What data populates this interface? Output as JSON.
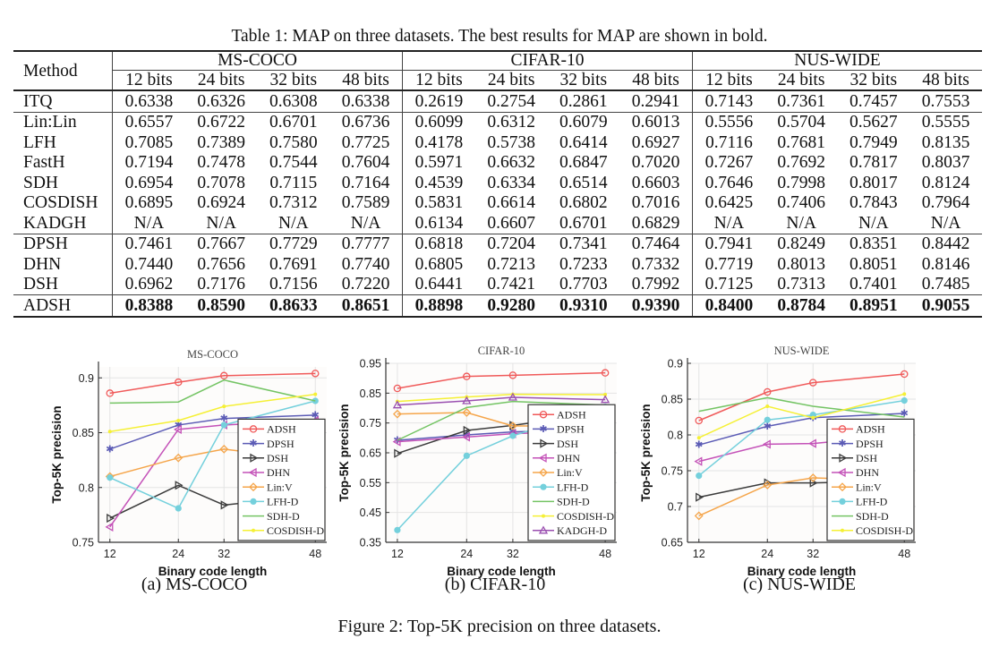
{
  "table": {
    "caption": "Table 1: MAP on three datasets. The best results for MAP are shown in bold.",
    "method_header": "Method",
    "datasets": [
      "MS-COCO",
      "CIFAR-10",
      "NUS-WIDE"
    ],
    "bits": [
      "12 bits",
      "24 bits",
      "32 bits",
      "48 bits"
    ],
    "rows": [
      {
        "method": "ITQ",
        "values": [
          "0.6338",
          "0.6326",
          "0.6308",
          "0.6338",
          "0.2619",
          "0.2754",
          "0.2861",
          "0.2941",
          "0.7143",
          "0.7361",
          "0.7457",
          "0.7553"
        ]
      },
      {
        "method": "Lin:Lin",
        "values": [
          "0.6557",
          "0.6722",
          "0.6701",
          "0.6736",
          "0.6099",
          "0.6312",
          "0.6079",
          "0.6013",
          "0.5556",
          "0.5704",
          "0.5627",
          "0.5555"
        ]
      },
      {
        "method": "LFH",
        "values": [
          "0.7085",
          "0.7389",
          "0.7580",
          "0.7725",
          "0.4178",
          "0.5738",
          "0.6414",
          "0.6927",
          "0.7116",
          "0.7681",
          "0.7949",
          "0.8135"
        ]
      },
      {
        "method": "FastH",
        "values": [
          "0.7194",
          "0.7478",
          "0.7544",
          "0.7604",
          "0.5971",
          "0.6632",
          "0.6847",
          "0.7020",
          "0.7267",
          "0.7692",
          "0.7817",
          "0.8037"
        ]
      },
      {
        "method": "SDH",
        "values": [
          "0.6954",
          "0.7078",
          "0.7115",
          "0.7164",
          "0.4539",
          "0.6334",
          "0.6514",
          "0.6603",
          "0.7646",
          "0.7998",
          "0.8017",
          "0.8124"
        ]
      },
      {
        "method": "COSDISH",
        "values": [
          "0.6895",
          "0.6924",
          "0.7312",
          "0.7589",
          "0.5831",
          "0.6614",
          "0.6802",
          "0.7016",
          "0.6425",
          "0.7406",
          "0.7843",
          "0.7964"
        ]
      },
      {
        "method": "KADGH",
        "values": [
          "N/A",
          "N/A",
          "N/A",
          "N/A",
          "0.6134",
          "0.6607",
          "0.6701",
          "0.6829",
          "N/A",
          "N/A",
          "N/A",
          "N/A"
        ]
      },
      {
        "method": "DPSH",
        "values": [
          "0.7461",
          "0.7667",
          "0.7729",
          "0.7777",
          "0.6818",
          "0.7204",
          "0.7341",
          "0.7464",
          "0.7941",
          "0.8249",
          "0.8351",
          "0.8442"
        ]
      },
      {
        "method": "DHN",
        "values": [
          "0.7440",
          "0.7656",
          "0.7691",
          "0.7740",
          "0.6805",
          "0.7213",
          "0.7233",
          "0.7332",
          "0.7719",
          "0.8013",
          "0.8051",
          "0.8146"
        ]
      },
      {
        "method": "DSH",
        "values": [
          "0.6962",
          "0.7176",
          "0.7156",
          "0.7220",
          "0.6441",
          "0.7421",
          "0.7703",
          "0.7992",
          "0.7125",
          "0.7313",
          "0.7401",
          "0.7485"
        ]
      },
      {
        "method": "ADSH",
        "values": [
          "0.8388",
          "0.8590",
          "0.8633",
          "0.8651",
          "0.8898",
          "0.9280",
          "0.9310",
          "0.9390",
          "0.8400",
          "0.8784",
          "0.8951",
          "0.9055"
        ],
        "bold": true
      }
    ]
  },
  "figure": {
    "caption": "Figure 2: Top-5K precision on three datasets.",
    "subcaptions": [
      "(a) MS-COCO",
      "(b) CIFAR-10",
      "(c) NUS-WIDE"
    ]
  },
  "series_styles": {
    "ADSH": {
      "color": "#f05a5a",
      "marker": "circle"
    },
    "DPSH": {
      "color": "#5b5bb5",
      "marker": "star"
    },
    "DSH": {
      "color": "#3c3c3c",
      "marker": "tri-right"
    },
    "DHN": {
      "color": "#c452b8",
      "marker": "tri-left"
    },
    "Lin:V": {
      "color": "#f5a54a",
      "marker": "diamond"
    },
    "LFH-D": {
      "color": "#74d0dc",
      "marker": "hexagram"
    },
    "SDH-D": {
      "color": "#74c464",
      "marker": "none"
    },
    "COSDISH-D": {
      "color": "#f5f035",
      "marker": "dot"
    },
    "KADGH-D": {
      "color": "#9a4fb0",
      "marker": "tri-up"
    }
  },
  "chart_data": [
    {
      "type": "line",
      "title": "MS-COCO",
      "xlabel": "Binary code length",
      "ylabel": "Top-5K precision",
      "x": [
        12,
        24,
        32,
        48
      ],
      "ylim": [
        0.75,
        0.91
      ],
      "yticks": [
        0.75,
        0.8,
        0.85,
        0.9
      ],
      "ytick_labels": [
        "0.75",
        "0.8",
        "0.85",
        "0.9"
      ],
      "grid": true,
      "legend": "bottom-right",
      "series": [
        {
          "name": "ADSH",
          "values": [
            0.886,
            0.896,
            0.902,
            0.904
          ]
        },
        {
          "name": "DPSH",
          "values": [
            0.835,
            0.857,
            0.863,
            0.866
          ]
        },
        {
          "name": "DSH",
          "values": [
            0.772,
            0.802,
            0.784,
            0.793
          ]
        },
        {
          "name": "DHN",
          "values": [
            0.764,
            0.853,
            0.857,
            0.861
          ]
        },
        {
          "name": "Lin:V",
          "values": [
            0.81,
            0.827,
            0.835,
            0.825
          ]
        },
        {
          "name": "LFH-D",
          "values": [
            0.809,
            0.781,
            0.857,
            0.879
          ]
        },
        {
          "name": "SDH-D",
          "values": [
            0.877,
            0.878,
            0.898,
            0.879
          ]
        },
        {
          "name": "COSDISH-D",
          "values": [
            0.851,
            0.861,
            0.874,
            0.885
          ]
        }
      ]
    },
    {
      "type": "line",
      "title": "CIFAR-10",
      "xlabel": "Binary code length",
      "ylabel": "Top-5K precision",
      "x": [
        12,
        24,
        32,
        48
      ],
      "ylim": [
        0.35,
        0.95
      ],
      "yticks": [
        0.35,
        0.45,
        0.55,
        0.65,
        0.75,
        0.85,
        0.95
      ],
      "ytick_labels": [
        "0.35",
        "0.45",
        "0.55",
        "0.65",
        "0.75",
        "0.85",
        "0.95"
      ],
      "grid": true,
      "legend": "bottom-right",
      "series": [
        {
          "name": "ADSH",
          "values": [
            0.866,
            0.906,
            0.91,
            0.918
          ]
        },
        {
          "name": "DPSH",
          "values": [
            0.692,
            0.71,
            0.72,
            0.728
          ]
        },
        {
          "name": "DSH",
          "values": [
            0.648,
            0.725,
            0.742,
            0.785
          ]
        },
        {
          "name": "DHN",
          "values": [
            0.687,
            0.703,
            0.714,
            0.725
          ]
        },
        {
          "name": "Lin:V",
          "values": [
            0.78,
            0.785,
            0.74,
            0.74
          ]
        },
        {
          "name": "LFH-D",
          "values": [
            0.391,
            0.64,
            0.707,
            0.804
          ]
        },
        {
          "name": "SDH-D",
          "values": [
            0.692,
            0.802,
            0.822,
            0.81
          ]
        },
        {
          "name": "COSDISH-D",
          "values": [
            0.822,
            0.837,
            0.846,
            0.845
          ]
        },
        {
          "name": "KADGH-D",
          "values": [
            0.81,
            0.824,
            0.836,
            0.828
          ]
        }
      ]
    },
    {
      "type": "line",
      "title": "NUS-WIDE",
      "xlabel": "Binary code length",
      "ylabel": "Top-5K precision",
      "x": [
        12,
        24,
        32,
        48
      ],
      "ylim": [
        0.65,
        0.9
      ],
      "yticks": [
        0.65,
        0.7,
        0.75,
        0.8,
        0.85,
        0.9
      ],
      "ytick_labels": [
        "0.65",
        "0.7",
        "0.75",
        "0.8",
        "0.85",
        "0.9"
      ],
      "grid": true,
      "legend": "bottom-right",
      "series": [
        {
          "name": "ADSH",
          "values": [
            0.82,
            0.86,
            0.873,
            0.885
          ]
        },
        {
          "name": "DPSH",
          "values": [
            0.786,
            0.812,
            0.824,
            0.83
          ]
        },
        {
          "name": "DSH",
          "values": [
            0.713,
            0.733,
            0.733,
            0.736
          ]
        },
        {
          "name": "DHN",
          "values": [
            0.763,
            0.787,
            0.788,
            0.8
          ]
        },
        {
          "name": "Lin:V",
          "values": [
            0.687,
            0.73,
            0.74,
            0.736
          ]
        },
        {
          "name": "LFH-D",
          "values": [
            0.743,
            0.821,
            0.828,
            0.848
          ]
        },
        {
          "name": "SDH-D",
          "values": [
            0.833,
            0.852,
            0.84,
            0.825
          ]
        },
        {
          "name": "COSDISH-D",
          "values": [
            0.796,
            0.84,
            0.824,
            0.857
          ]
        }
      ]
    }
  ]
}
